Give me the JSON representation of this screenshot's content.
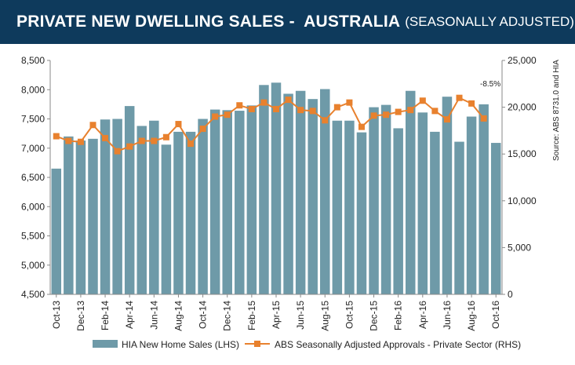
{
  "title": {
    "main": "PRIVATE NEW DWELLING SALES -  AUSTRALIA",
    "sub": "(SEASONALLY ADJUSTED)"
  },
  "source_label": "Source: ABS 8731.0 and HIA",
  "colors": {
    "title_bg": "#0e3a5c",
    "bars": "#6e9aa8",
    "line": "#e8812e",
    "axis": "#8a8a8a"
  },
  "chart_data": {
    "type": "bar",
    "categories": [
      "Oct-13",
      "Nov-13",
      "Dec-13",
      "Jan-14",
      "Feb-14",
      "Mar-14",
      "Apr-14",
      "May-14",
      "Jun-14",
      "Jul-14",
      "Aug-14",
      "Sep-14",
      "Oct-14",
      "Nov-14",
      "Dec-14",
      "Jan-15",
      "Feb-15",
      "Mar-15",
      "Apr-15",
      "May-15",
      "Jun-15",
      "Jul-15",
      "Aug-15",
      "Sep-15",
      "Oct-15",
      "Nov-15",
      "Dec-15",
      "Jan-16",
      "Feb-16",
      "Mar-16",
      "Apr-16",
      "May-16",
      "Jun-16",
      "Jul-16",
      "Aug-16",
      "Sep-16",
      "Oct-16"
    ],
    "tick_labels": [
      "Oct-13",
      "Dec-13",
      "Feb-14",
      "Apr-14",
      "Jun-14",
      "Aug-14",
      "Oct-14",
      "Dec-14",
      "Feb-15",
      "Apr-15",
      "Jun-15",
      "Aug-15",
      "Oct-15",
      "Dec-15",
      "Feb-16",
      "Apr-16",
      "Jun-16",
      "Aug-16",
      "Oct-16"
    ],
    "series": [
      {
        "name": "HIA New Home Sales (LHS)",
        "type": "bar",
        "axis": "left",
        "values": [
          6650,
          7200,
          7130,
          7160,
          7490,
          7500,
          7720,
          7380,
          7470,
          7060,
          7280,
          7280,
          7500,
          7660,
          7650,
          7640,
          7730,
          8080,
          8120,
          7930,
          7980,
          7840,
          8010,
          7470,
          7470,
          7270,
          7700,
          7740,
          7340,
          7980,
          7610,
          7280,
          7880,
          7110,
          7540,
          7750,
          7090
        ]
      },
      {
        "name": "ABS Seasonally Adjusted Approvals - Private Sector (RHS)",
        "type": "line",
        "axis": "right",
        "values": [
          16900,
          16400,
          16300,
          18100,
          16700,
          15300,
          15800,
          16400,
          16400,
          16800,
          18200,
          16100,
          17700,
          19000,
          19200,
          20200,
          19800,
          20500,
          19800,
          20800,
          19700,
          19600,
          18600,
          20000,
          20500,
          17900,
          19100,
          19200,
          19500,
          19700,
          20700,
          19600,
          18700,
          21000,
          20400,
          18800,
          null
        ]
      }
    ],
    "y_left": {
      "min": 4500,
      "max": 8500,
      "ticks": [
        "4,500",
        "5,000",
        "5,500",
        "6,000",
        "6,500",
        "7,000",
        "7,500",
        "8,000",
        "8,500"
      ]
    },
    "y_right": {
      "min": 0,
      "max": 25000,
      "ticks": [
        "0",
        "5,000",
        "10,000",
        "15,000",
        "20,000",
        "25,000"
      ]
    },
    "annotation": "-8.5%",
    "legend_placement": "bottom"
  }
}
